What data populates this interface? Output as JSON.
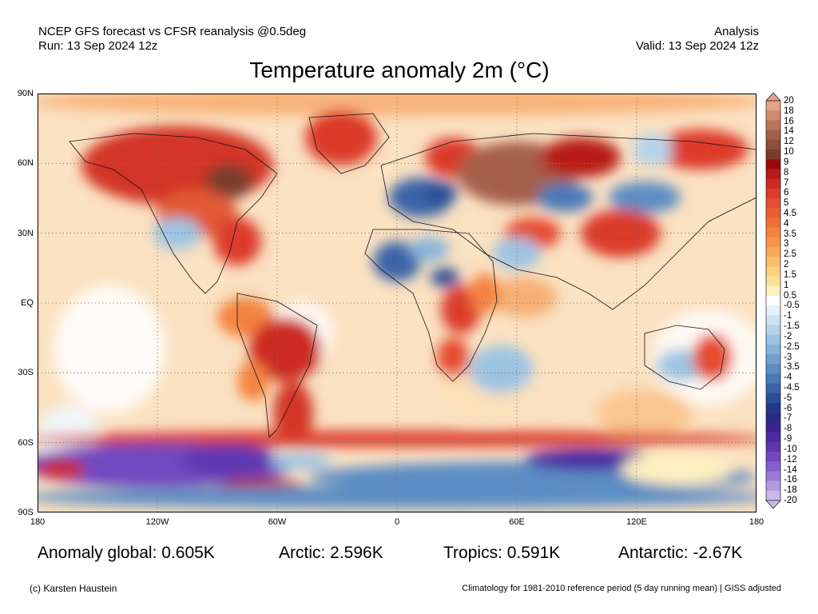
{
  "header": {
    "line1_left": "NCEP GFS forecast vs CFSR reanalysis @0.5deg",
    "line2_left": "Run: 13 Sep 2024 12z",
    "line1_right": "Analysis",
    "line2_right": "Valid: 13 Sep 2024 12z"
  },
  "title": "Temperature anomaly 2m (°C)",
  "lat_labels": [
    "90N",
    "60N",
    "30N",
    "EQ",
    "30S",
    "60S",
    "90S"
  ],
  "lon_labels": [
    "180",
    "120W",
    "60W",
    "0",
    "60E",
    "120E",
    "180"
  ],
  "colorbar": {
    "labels": [
      "20",
      "18",
      "16",
      "14",
      "12",
      "10",
      "9",
      "8",
      "7",
      "6",
      "5",
      "4.5",
      "4",
      "3.5",
      "3",
      "2.5",
      "2",
      "1.5",
      "1",
      "0.5",
      "-0.5",
      "-1",
      "-1.5",
      "-2",
      "-2.5",
      "-3",
      "-3.5",
      "-4",
      "-4.5",
      "-5",
      "-6",
      "-7",
      "-8",
      "-9",
      "-10",
      "-12",
      "-14",
      "-16",
      "-18",
      "-20"
    ],
    "colors": [
      "#e2a48a",
      "#cf8a70",
      "#b9735b",
      "#a45f4a",
      "#8f4d3b",
      "#7a3c2e",
      "#9b0a0a",
      "#b71a18",
      "#cc2a22",
      "#dc3b2a",
      "#e64c2f",
      "#ec5e33",
      "#f07038",
      "#f4823f",
      "#f79649",
      "#f9aa56",
      "#fbbd68",
      "#fcd07e",
      "#fde197",
      "#fef0bf",
      "#ffffff",
      "#e6f1f8",
      "#cde3f1",
      "#b4d3ea",
      "#9cc4e2",
      "#86b3d9",
      "#71a1cf",
      "#5c8dc4",
      "#4a79b7",
      "#3a63a8",
      "#2c4e99",
      "#25398a",
      "#2b2a86",
      "#3b2391",
      "#4c2aa0",
      "#5e37b0",
      "#7049c0",
      "#8560cc",
      "#9a7bd6",
      "#b29ae0",
      "#c9b9eb"
    ]
  },
  "stats": {
    "global": "Anomaly global: 0.605K",
    "arctic": "Arctic: 2.596K",
    "tropics": "Tropics: 0.591K",
    "antarctic": "Antarctic: -2.67K"
  },
  "footer": {
    "credit": "(c) Karsten Haustein",
    "climatology": "Climatology for 1981-2010 reference period (5 day running mean) | GISS adjusted"
  }
}
